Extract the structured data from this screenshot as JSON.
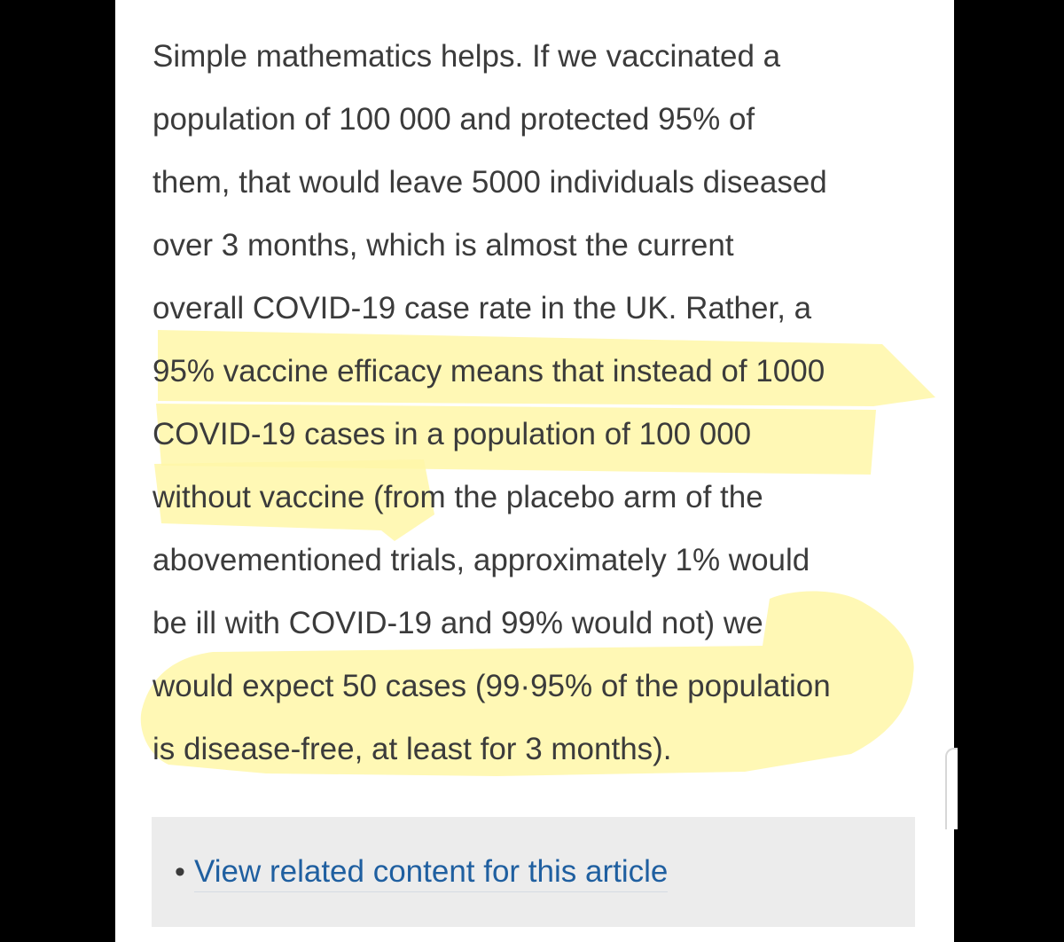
{
  "article": {
    "lines": [
      "Simple mathematics helps. If we vaccinated a",
      "population of 100 000 and protected 95% of",
      "them, that would leave 5000 individuals diseased",
      "over 3 months, which is almost the current",
      "overall COVID-19 case rate in the UK. Rather, a",
      "95% vaccine efficacy means that instead of 1000",
      "COVID-19 cases in a population of 100 000",
      "without vaccine (from the placebo arm of the",
      "abovementioned trials, approximately 1% would",
      "be ill with COVID-19 and 99% would not) we",
      "would expect 50 cases (99·95% of the population",
      "is disease-free, at least for 3 months)."
    ]
  },
  "related": {
    "bullet": "•",
    "link_label": "View related content for this article"
  },
  "colors": {
    "highlight": "#fff7a8",
    "text": "#3b3b3b",
    "link": "#1f5fa0",
    "box": "#ececec"
  }
}
